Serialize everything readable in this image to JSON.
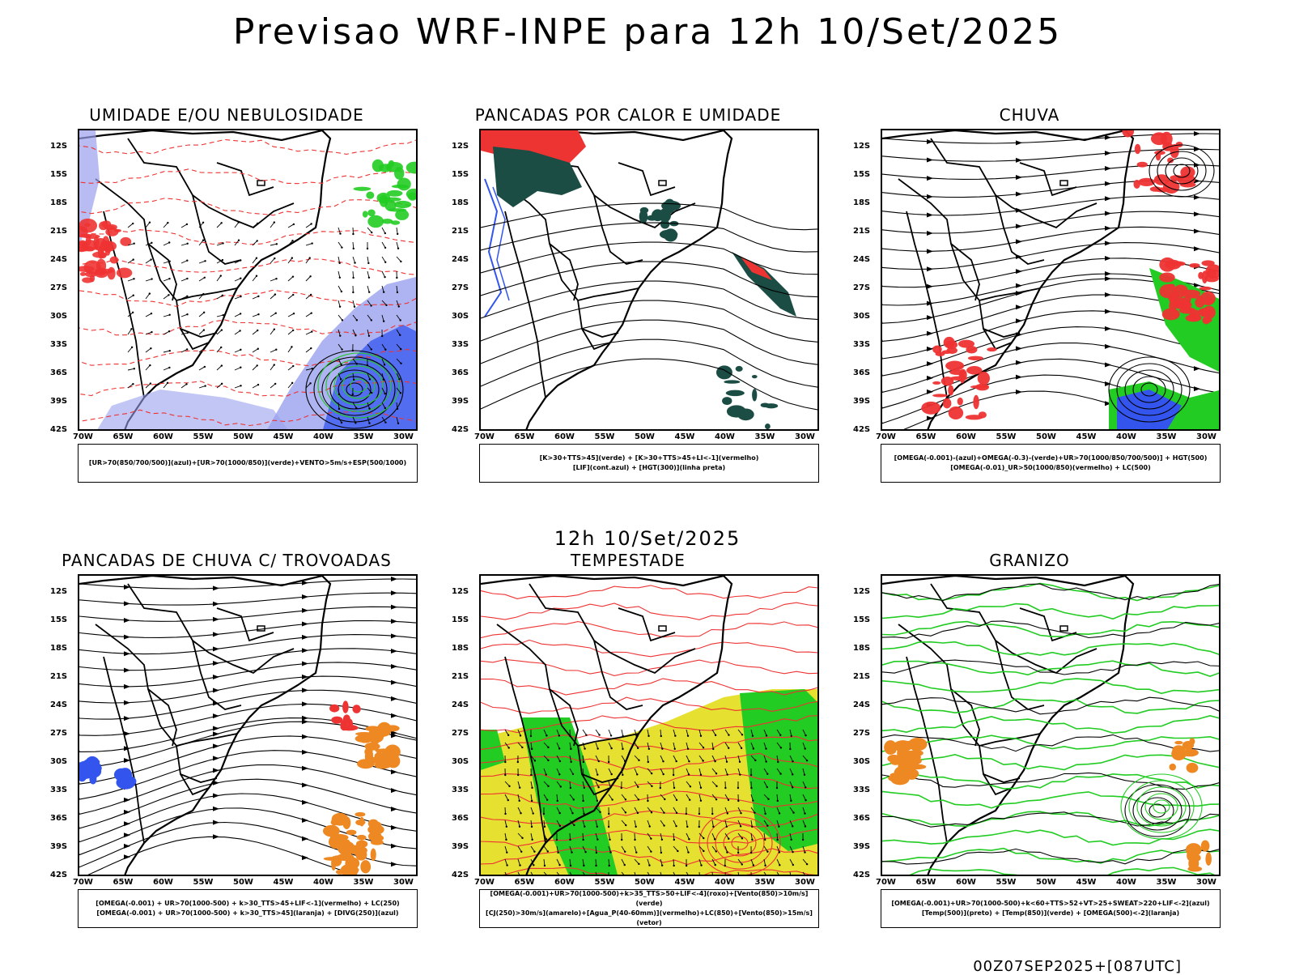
{
  "title": "Previsao WRF-INPE  para 12h 10/Set/2025",
  "mid_title": "12h 10/Set/2025",
  "footer": "00Z07SEP2025+[087UTC]",
  "lat_ticks": [
    "12S",
    "15S",
    "18S",
    "21S",
    "24S",
    "27S",
    "30S",
    "33S",
    "36S",
    "39S",
    "42S"
  ],
  "lon_ticks": [
    "70W",
    "65W",
    "60W",
    "55W",
    "50W",
    "45W",
    "40W",
    "35W",
    "30W"
  ],
  "colors": {
    "blue": "#3355ee",
    "green": "#22cc22",
    "red": "#ee3333",
    "orange": "#ee8822",
    "yellow": "#e6e030",
    "darkgreen": "#1b4d45",
    "lightblue": "#9aa0ee"
  },
  "panels": [
    {
      "title": "UMIDADE E/OU NEBULOSIDADE",
      "legend": [
        "[UR>70(850/700/500)](azul)+[UR>70(1000/850)](verde)+VENTO>5m/s+ESP(500/1000)"
      ]
    },
    {
      "title": "PANCADAS POR CALOR E UMIDADE",
      "legend": [
        "[K>30+TTS>45](verde) + [K>30+TTS>45+LI<-1](vermelho)",
        "[LIF](cont.azul) + [HGT(300)](linha preta)"
      ]
    },
    {
      "title": "CHUVA",
      "legend": [
        "[OMEGA(-0.001)-(azul)+OMEGA(-0.3)-(verde)+UR>70(1000/850/700/500)] + HGT(500)",
        "[OMEGA(-0.01)_UR>50(1000/850)(vermelho) + LC(500)"
      ]
    },
    {
      "title": "PANCADAS DE CHUVA C/ TROVOADAS",
      "legend": [
        "[OMEGA(-0.001) + UR>70(1000-500) + k>30_TTS>45+LIF<-1](vermelho) + LC(250)",
        "[OMEGA(-0.001) + UR>70(1000-500) + k>30_TTS>45](laranja) + [DIVG(250)](azul)"
      ]
    },
    {
      "title": "TEMPESTADE",
      "legend": [
        "[OMEGA(-0.001)+UR>70(1000-500)+k>35_TTS>50+LIF<-4](roxo)+[Vento(850)>10m/s](verde)",
        "[CJ(250)>30m/s](amarelo)+[Agua_P(40-60mm)](vermelho)+LC(850)+[Vento(850)>15m/s](vetor)"
      ]
    },
    {
      "title": "GRANIZO",
      "legend": [
        "[OMEGA(-0.001)+UR>70(1000-500)+k<60+TTS>52+VT>25+SWEAT>220+LIF<-2](azul)",
        "[Temp(500)](preto) + [Temp(850)](verde) + [OMEGA(500)<-2](laranja)"
      ]
    }
  ]
}
